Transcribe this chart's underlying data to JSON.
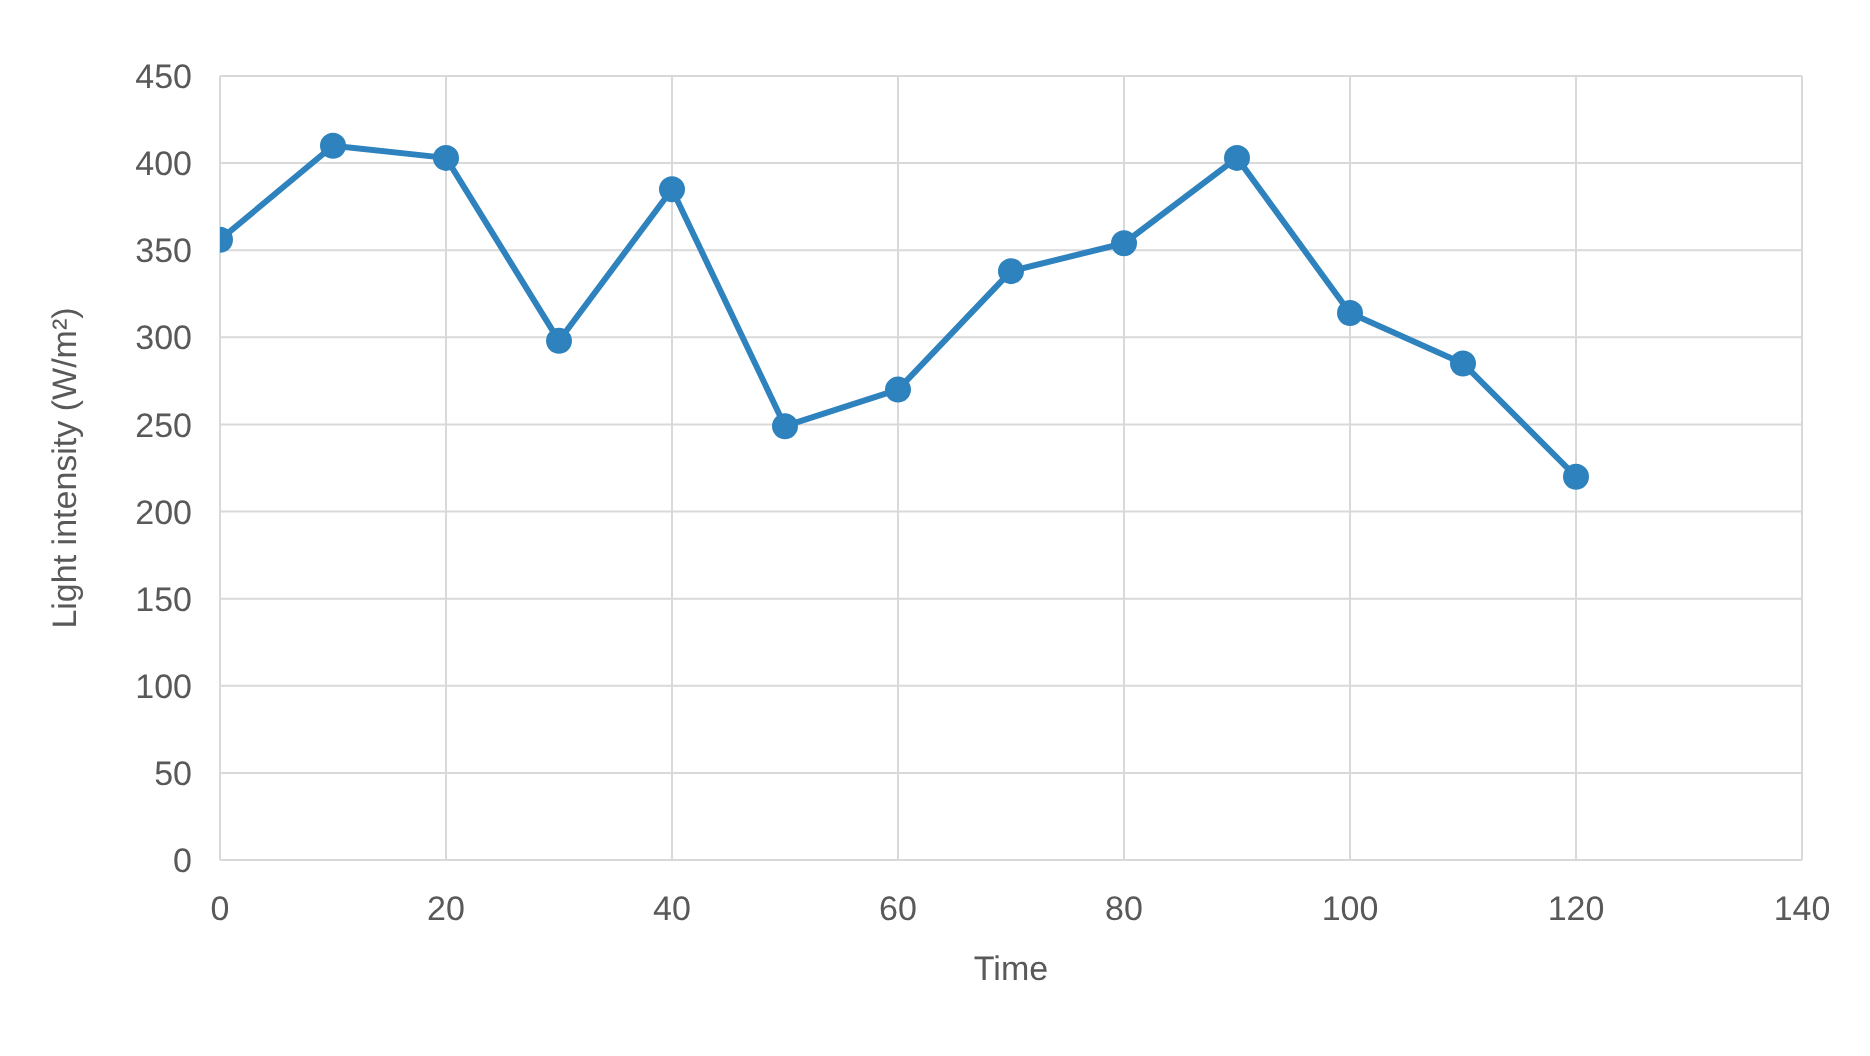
{
  "chart_data": {
    "type": "line",
    "xlabel": "Time",
    "ylabel": "Light intensity (W/m²)",
    "x": [
      0,
      10,
      20,
      30,
      40,
      50,
      60,
      70,
      80,
      90,
      100,
      110,
      120
    ],
    "series": [
      {
        "color": "#2e82bd",
        "values": [
          356,
          410,
          403,
          298,
          385,
          249,
          270,
          338,
          354,
          403,
          314,
          285,
          220
        ]
      }
    ],
    "xlim": [
      0,
      140
    ],
    "xticks": [
      0,
      20,
      40,
      60,
      80,
      100,
      120,
      140
    ],
    "ylim": [
      0,
      450
    ],
    "yticks": [
      0,
      50,
      100,
      150,
      200,
      250,
      300,
      350,
      400,
      450
    ],
    "grid": true,
    "marker": "circle",
    "line_style": "solid",
    "legend": false
  }
}
